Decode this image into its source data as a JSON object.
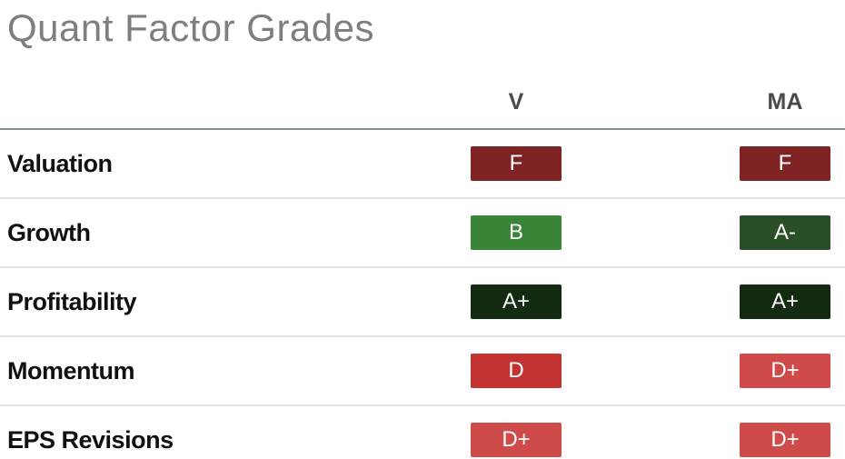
{
  "title": "Quant Factor Grades",
  "table": {
    "columns": [
      {
        "key": "v",
        "label": "V"
      },
      {
        "key": "ma",
        "label": "MA"
      }
    ],
    "rows": [
      {
        "label": "Valuation",
        "v": {
          "grade": "F",
          "color": "#7f2223"
        },
        "ma": {
          "grade": "F",
          "color": "#7f2223"
        }
      },
      {
        "label": "Growth",
        "v": {
          "grade": "B",
          "color": "#398436"
        },
        "ma": {
          "grade": "A-",
          "color": "#2a4f27"
        }
      },
      {
        "label": "Profitability",
        "v": {
          "grade": "A+",
          "color": "#132b10"
        },
        "ma": {
          "grade": "A+",
          "color": "#132b10"
        }
      },
      {
        "label": "Momentum",
        "v": {
          "grade": "D",
          "color": "#c23332"
        },
        "ma": {
          "grade": "D+",
          "color": "#cf4b49"
        }
      },
      {
        "label": "EPS Revisions",
        "v": {
          "grade": "D+",
          "color": "#cf4b49"
        },
        "ma": {
          "grade": "D+",
          "color": "#cf4b49"
        }
      }
    ]
  },
  "colors": {
    "title_text": "#7e7e7e",
    "header_text": "#4a4a4a",
    "header_rule": "#869093",
    "row_divider": "#e1e1e1",
    "label_text": "#111111",
    "badge_text": "#ffffff"
  }
}
